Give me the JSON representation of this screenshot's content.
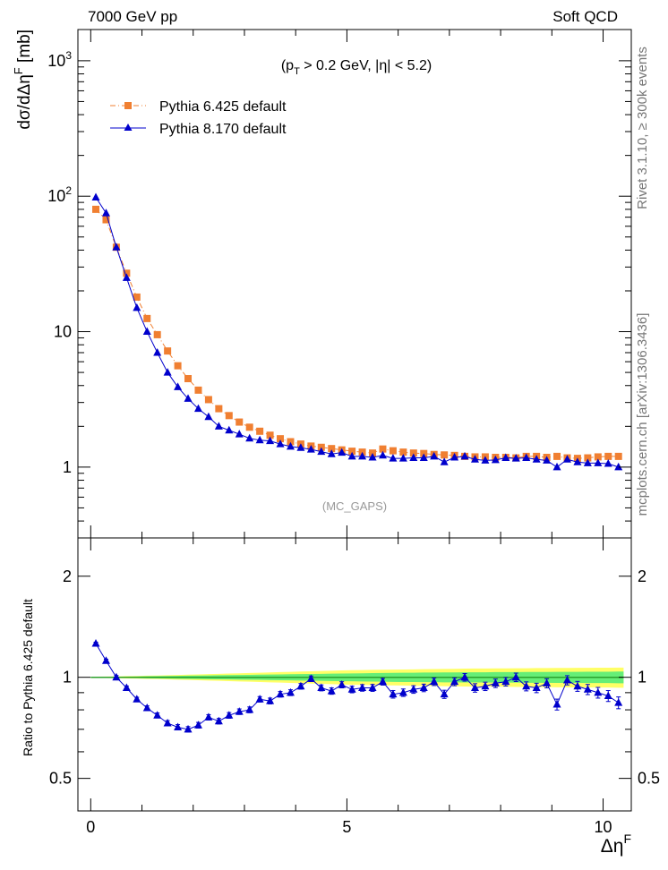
{
  "header": {
    "left": "7000 GeV pp",
    "right": "Soft QCD"
  },
  "side_labels": {
    "rivet": "Rivet 3.1.10, ≥ 300k events",
    "mcplots": "mcplots.cern.ch [arXiv:1306.3436]"
  },
  "chart_data": [
    {
      "type": "scatter",
      "panel": "main",
      "title": "",
      "cut_label": {
        "prefix": "(p",
        "sub": "T",
        "suffix": " > 0.2 GeV, |η| < 5.2)"
      },
      "analysis_tag": "(MC_GAPS)",
      "ylabel": {
        "text": "dσ/dΔη",
        "sup": "F",
        "unit": " [mb]"
      },
      "xlabel": {
        "text": "Δη",
        "sup": "F"
      },
      "yscale": "log",
      "ylim": [
        0.3,
        1700
      ],
      "xlim": [
        -0.25,
        10.55
      ],
      "y_tick_labels": [
        {
          "value": 1,
          "label": "1"
        },
        {
          "value": 10,
          "label": "10"
        },
        {
          "value": 100,
          "label": "10",
          "sup": "2"
        },
        {
          "value": 1000,
          "label": "10",
          "sup": "3"
        }
      ],
      "x": [
        0.1,
        0.3,
        0.5,
        0.7,
        0.9,
        1.1,
        1.3,
        1.5,
        1.7,
        1.9,
        2.1,
        2.3,
        2.5,
        2.7,
        2.9,
        3.1,
        3.3,
        3.5,
        3.7,
        3.9,
        4.1,
        4.3,
        4.5,
        4.7,
        4.9,
        5.1,
        5.3,
        5.5,
        5.7,
        5.9,
        6.1,
        6.3,
        6.5,
        6.7,
        6.9,
        7.1,
        7.3,
        7.5,
        7.7,
        7.9,
        8.1,
        8.3,
        8.5,
        8.7,
        8.9,
        9.1,
        9.3,
        9.5,
        9.7,
        9.9,
        10.1,
        10.3
      ],
      "legend": [
        {
          "name": "Pythia 6.425 default",
          "color": "#f07f31",
          "marker": "square",
          "line": "dash-dot"
        },
        {
          "name": "Pythia 8.170 default",
          "color": "#0000cc",
          "marker": "triangle",
          "line": "solid"
        }
      ],
      "series": [
        {
          "name": "Pythia 6.425 default",
          "values": [
            80,
            67,
            42,
            27,
            18,
            12.5,
            9.5,
            7.2,
            5.6,
            4.5,
            3.7,
            3.15,
            2.7,
            2.4,
            2.15,
            1.97,
            1.84,
            1.72,
            1.62,
            1.54,
            1.48,
            1.43,
            1.4,
            1.37,
            1.34,
            1.31,
            1.29,
            1.27,
            1.36,
            1.32,
            1.29,
            1.27,
            1.26,
            1.24,
            1.23,
            1.22,
            1.2,
            1.19,
            1.19,
            1.18,
            1.18,
            1.17,
            1.2,
            1.2,
            1.18,
            1.2,
            1.17,
            1.16,
            1.17,
            1.19,
            1.2,
            1.2
          ]
        },
        {
          "name": "Pythia 8.170 default",
          "values": [
            98,
            75,
            42,
            25,
            15,
            10,
            7,
            5,
            3.9,
            3.2,
            2.7,
            2.35,
            2.0,
            1.87,
            1.75,
            1.63,
            1.58,
            1.56,
            1.48,
            1.42,
            1.39,
            1.35,
            1.3,
            1.25,
            1.28,
            1.2,
            1.2,
            1.18,
            1.22,
            1.16,
            1.16,
            1.17,
            1.17,
            1.2,
            1.09,
            1.18,
            1.2,
            1.14,
            1.12,
            1.13,
            1.17,
            1.16,
            1.17,
            1.14,
            1.12,
            1.0,
            1.14,
            1.09,
            1.07,
            1.07,
            1.06,
            1.0
          ]
        }
      ]
    },
    {
      "type": "scatter",
      "panel": "ratio",
      "ylabel": "Ratio to Pythia 6.425 default",
      "yscale": "log",
      "ylim": [
        0.4,
        2.6
      ],
      "y_tick_labels": [
        {
          "value": 0.5,
          "label": "0.5"
        },
        {
          "value": 1,
          "label": "1"
        },
        {
          "value": 2,
          "label": "2"
        }
      ],
      "x_tick_labels": [
        {
          "value": 0,
          "label": "0"
        },
        {
          "value": 5,
          "label": "5"
        },
        {
          "value": 10,
          "label": "10"
        }
      ],
      "reference": {
        "name": "Pythia 6.425 default",
        "value": 1,
        "color": "#2ca02c"
      },
      "band_inner_color": "#66ee77",
      "band_outer_color": "#ffff66",
      "band_inner_halfwidth": [
        0.003,
        0.003,
        0.004,
        0.005,
        0.006,
        0.007,
        0.008,
        0.009,
        0.01,
        0.011,
        0.012,
        0.013,
        0.014,
        0.015,
        0.016,
        0.017,
        0.018,
        0.019,
        0.02,
        0.021,
        0.022,
        0.023,
        0.024,
        0.025,
        0.026,
        0.027,
        0.028,
        0.029,
        0.03,
        0.031,
        0.032,
        0.032,
        0.033,
        0.033,
        0.034,
        0.034,
        0.035,
        0.035,
        0.035,
        0.036,
        0.036,
        0.036,
        0.037,
        0.037,
        0.037,
        0.038,
        0.038,
        0.038,
        0.039,
        0.039,
        0.039,
        0.04
      ],
      "band_outer_halfwidth": [
        0.004,
        0.005,
        0.006,
        0.008,
        0.009,
        0.011,
        0.012,
        0.014,
        0.016,
        0.018,
        0.02,
        0.022,
        0.024,
        0.026,
        0.028,
        0.03,
        0.032,
        0.034,
        0.036,
        0.038,
        0.04,
        0.042,
        0.044,
        0.046,
        0.048,
        0.05,
        0.051,
        0.052,
        0.053,
        0.054,
        0.055,
        0.056,
        0.057,
        0.058,
        0.059,
        0.06,
        0.061,
        0.062,
        0.062,
        0.063,
        0.063,
        0.064,
        0.064,
        0.065,
        0.065,
        0.066,
        0.066,
        0.067,
        0.067,
        0.068,
        0.068,
        0.069
      ],
      "series": [
        {
          "name": "Pythia 8.170 default / Pythia 6.425 default",
          "color": "#0000cc",
          "values": [
            1.26,
            1.12,
            1.0,
            0.93,
            0.86,
            0.81,
            0.77,
            0.73,
            0.71,
            0.7,
            0.72,
            0.76,
            0.74,
            0.77,
            0.79,
            0.8,
            0.86,
            0.85,
            0.89,
            0.9,
            0.94,
            0.99,
            0.93,
            0.91,
            0.95,
            0.92,
            0.93,
            0.93,
            0.97,
            0.89,
            0.9,
            0.92,
            0.93,
            0.97,
            0.89,
            0.97,
            1.0,
            0.93,
            0.94,
            0.96,
            0.97,
            1.0,
            0.94,
            0.93,
            0.96,
            0.83,
            0.98,
            0.94,
            0.92,
            0.9,
            0.88,
            0.84
          ],
          "errors": [
            0.012,
            0.012,
            0.012,
            0.012,
            0.012,
            0.012,
            0.013,
            0.013,
            0.013,
            0.013,
            0.014,
            0.014,
            0.014,
            0.015,
            0.015,
            0.016,
            0.016,
            0.017,
            0.017,
            0.018,
            0.018,
            0.019,
            0.019,
            0.02,
            0.02,
            0.021,
            0.021,
            0.022,
            0.022,
            0.023,
            0.023,
            0.024,
            0.024,
            0.025,
            0.025,
            0.026,
            0.026,
            0.027,
            0.027,
            0.028,
            0.028,
            0.029,
            0.029,
            0.03,
            0.03,
            0.031,
            0.031,
            0.032,
            0.032,
            0.033,
            0.033,
            0.034
          ]
        }
      ]
    }
  ]
}
